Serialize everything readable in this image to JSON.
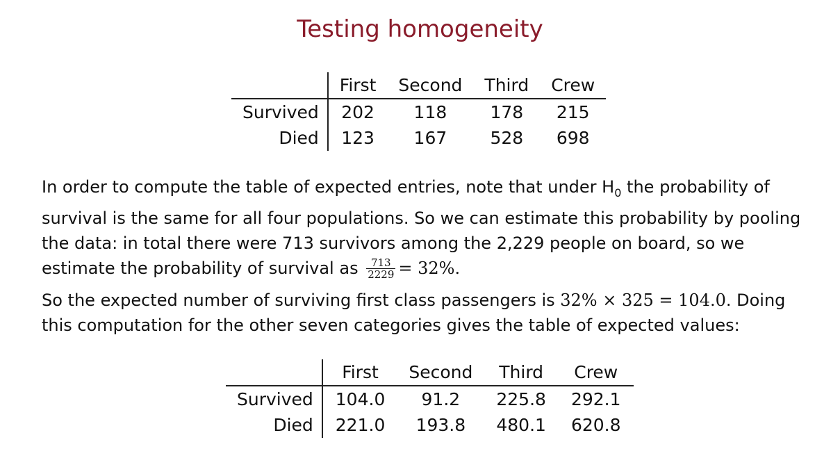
{
  "title": "Testing homogeneity",
  "observed_table": {
    "columns": [
      "First",
      "Second",
      "Third",
      "Crew"
    ],
    "rows": [
      {
        "label": "Survived",
        "values": [
          "202",
          "118",
          "178",
          "215"
        ]
      },
      {
        "label": "Died",
        "values": [
          "123",
          "167",
          "528",
          "698"
        ]
      }
    ]
  },
  "paragraph1": {
    "text_a": "In order to compute the table of expected entries, note that under H",
    "sub": "0",
    "text_b": " the probability of survival is the same for all four populations. So we can estimate this probability by pooling the data: in total there were 713 survivors among the 2,229 people on board, so we estimate the probability of survival as ",
    "frac_num": "713",
    "frac_den": "2229",
    "frac_result": "= 32%."
  },
  "paragraph2": {
    "text_a": "So the expected number of surviving first class passengers is ",
    "math": "32% × 325 = 104.0",
    "text_b": ". Doing this computation for the other seven categories gives the table of expected values:"
  },
  "expected_table": {
    "columns": [
      "First",
      "Second",
      "Third",
      "Crew"
    ],
    "rows": [
      {
        "label": "Survived",
        "values": [
          "104.0",
          "91.2",
          "225.8",
          "292.1"
        ]
      },
      {
        "label": "Died",
        "values": [
          "221.0",
          "193.8",
          "480.1",
          "620.8"
        ]
      }
    ]
  }
}
